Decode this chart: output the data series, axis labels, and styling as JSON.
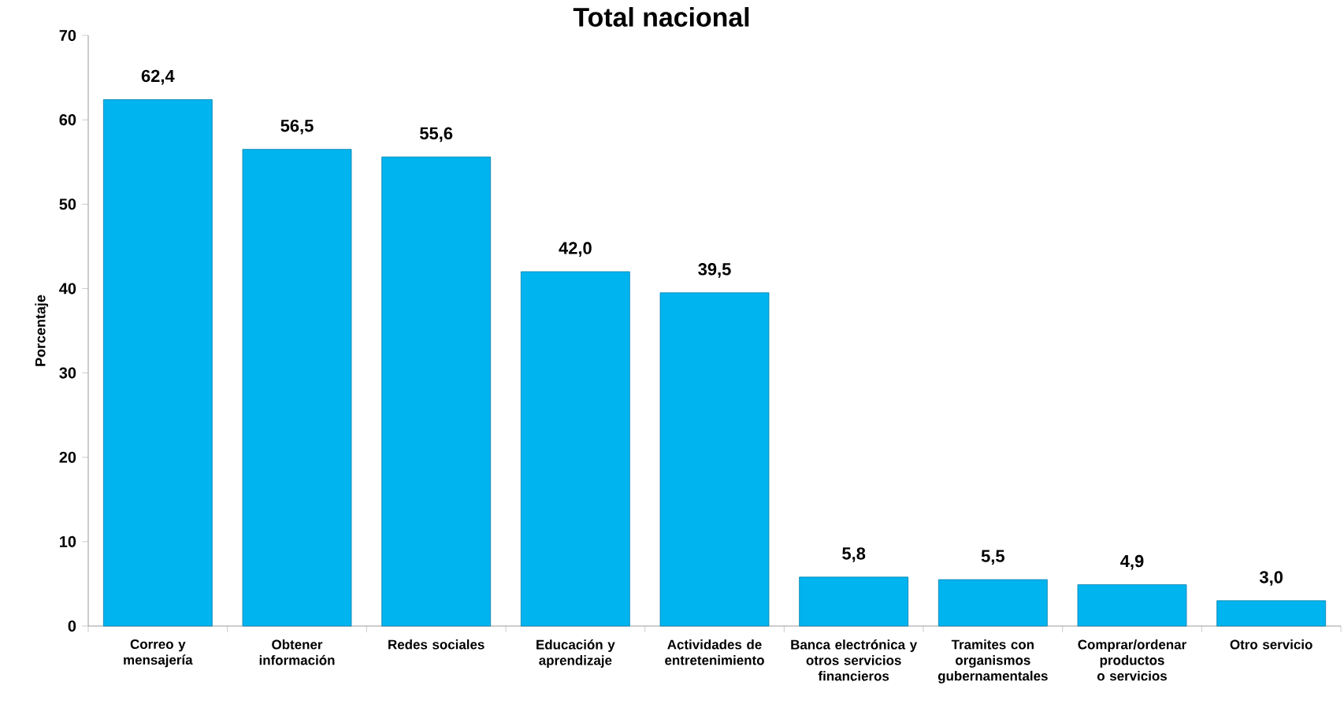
{
  "chart_data": {
    "type": "bar",
    "title": "Total nacional",
    "ylabel": "Porcentaje",
    "categories": [
      "Correo y mensajería",
      "Obtener información",
      "Redes sociales",
      "Educación y aprendizaje",
      "Actividades de entretenimiento",
      "Banca electrónica y otros servicios financieros",
      "Tramites con organismos gubernamentales",
      "Comprar/ordenar productos o servicios",
      "Otro servicio"
    ],
    "values": [
      62.4,
      56.5,
      55.6,
      42.0,
      39.5,
      5.8,
      5.5,
      4.9,
      3.0
    ],
    "value_labels": [
      "62,4",
      "56,5",
      "55,6",
      "42,0",
      "39,5",
      "5,8",
      "5,5",
      "4,9",
      "3,0"
    ],
    "color": "#00b4f0",
    "ylim": [
      0,
      70
    ],
    "yticks": [
      0,
      10,
      20,
      30,
      40,
      50,
      60,
      70
    ],
    "grid": false
  }
}
